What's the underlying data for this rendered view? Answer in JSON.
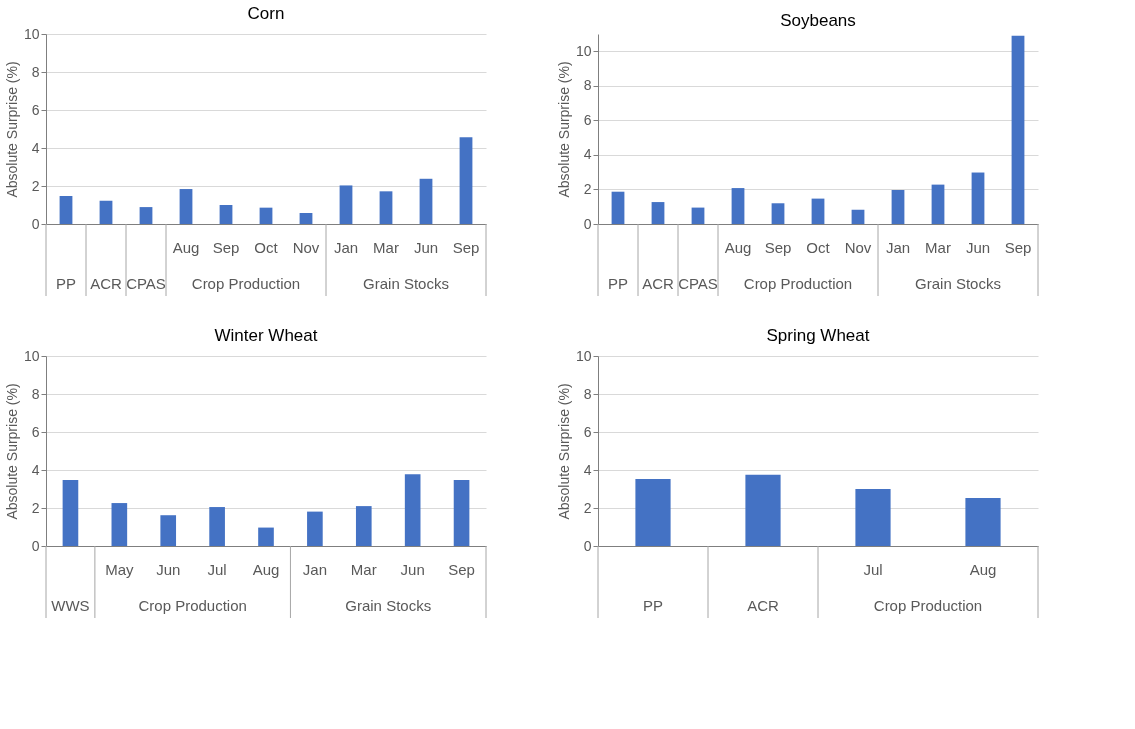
{
  "chart_data": [
    {
      "type": "bar",
      "title": "Corn",
      "ylabel": "Absolute Surprise (%)",
      "color": "#4472c4",
      "ylim": [
        0,
        10
      ],
      "yticks": [
        0,
        2,
        4,
        6,
        8,
        10
      ],
      "grid": "y",
      "categories": [
        null,
        null,
        null,
        "Aug",
        "Sep",
        "Oct",
        "Nov",
        "Jan",
        "Mar",
        "Jun",
        "Sep"
      ],
      "values": [
        1.48,
        1.23,
        0.89,
        1.84,
        1.0,
        0.86,
        0.58,
        2.03,
        1.72,
        2.38,
        4.56
      ],
      "annotations": [
        "PP",
        "ACR",
        "CPAS",
        "Crop Production",
        "Grain Stocks"
      ]
    },
    {
      "type": "bar",
      "title": "Soybeans",
      "ylabel": "Absolute Surprise (%)",
      "color": "#4472c4",
      "ylim": [
        0,
        11
      ],
      "yticks": [
        0,
        2,
        4,
        6,
        8,
        10
      ],
      "grid": "y",
      "categories": [
        null,
        null,
        null,
        "Aug",
        "Sep",
        "Oct",
        "Nov",
        "Jan",
        "Mar",
        "Jun",
        "Sep"
      ],
      "values": [
        1.87,
        1.27,
        0.95,
        2.08,
        1.2,
        1.47,
        0.82,
        1.97,
        2.28,
        2.98,
        10.9
      ],
      "annotations": [
        "PP",
        "ACR",
        "CPAS",
        "Crop Production",
        "Grain Stocks"
      ]
    },
    {
      "type": "bar",
      "title": "Winter Wheat",
      "ylabel": "Absolute Surprise (%)",
      "color": "#4472c4",
      "ylim": [
        0,
        10
      ],
      "yticks": [
        0,
        2,
        4,
        6,
        8,
        10
      ],
      "grid": "y",
      "categories": [
        null,
        "May",
        "Jun",
        "Jul",
        "Aug",
        "Jan",
        "Mar",
        "Jun",
        "Sep"
      ],
      "values": [
        3.48,
        2.26,
        1.62,
        2.05,
        0.97,
        1.81,
        2.1,
        3.77,
        3.48
      ],
      "annotations": [
        "WWS",
        "Crop Production",
        "Grain Stocks"
      ]
    },
    {
      "type": "bar",
      "title": "Spring Wheat",
      "ylabel": "Absolute Surprise (%)",
      "color": "#4472c4",
      "ylim": [
        0,
        10
      ],
      "yticks": [
        0,
        2,
        4,
        6,
        8,
        10
      ],
      "grid": "y",
      "categories": [
        null,
        null,
        "Jul",
        "Aug"
      ],
      "values": [
        3.52,
        3.75,
        3.0,
        2.53
      ],
      "annotations": [
        "PP",
        "ACR",
        "Crop Production"
      ]
    }
  ]
}
